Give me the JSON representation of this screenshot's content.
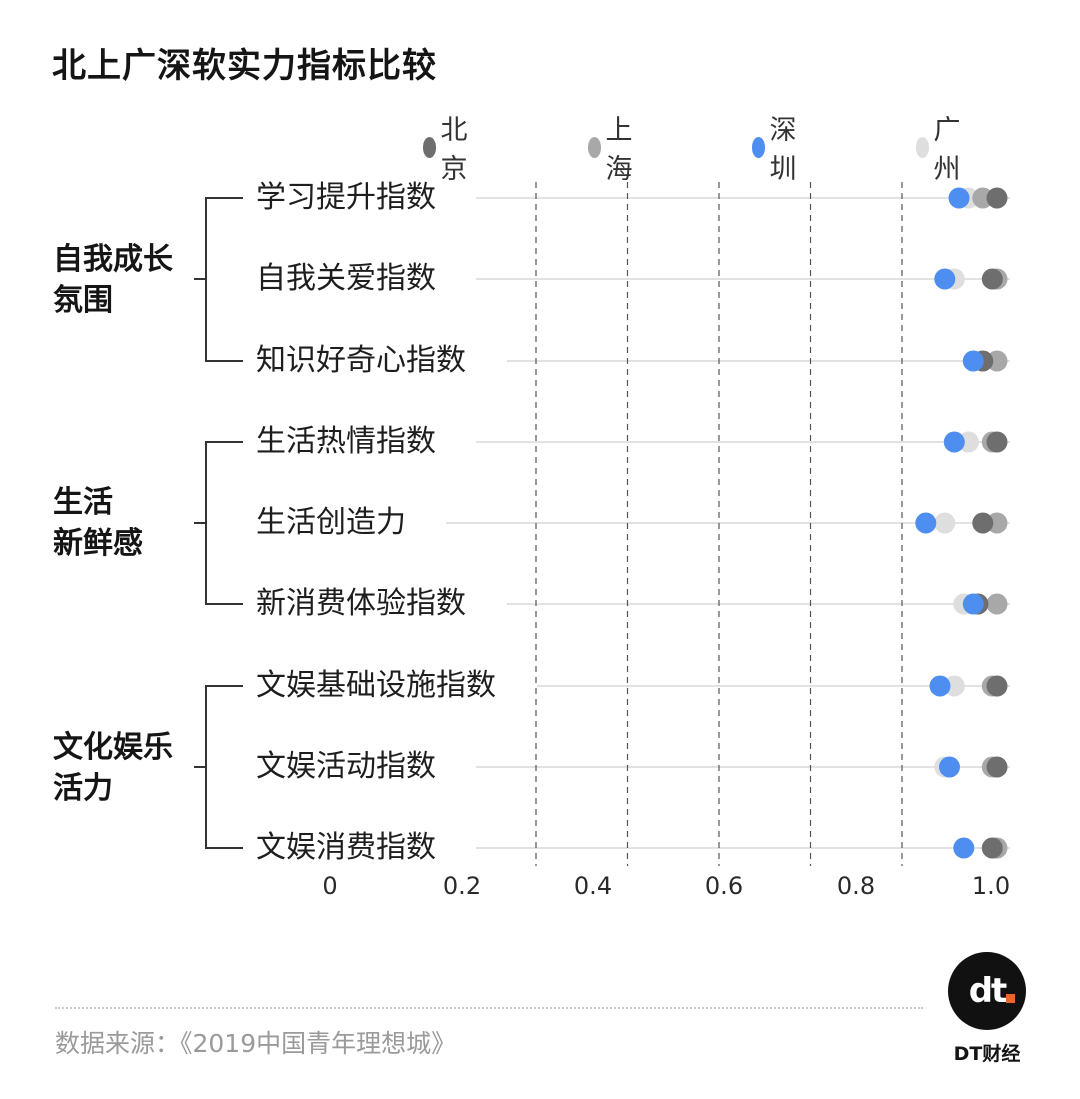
{
  "title": "北上广深软实力指标比较",
  "legend": [
    {
      "name": "北京",
      "color": "#6e6e6e"
    },
    {
      "name": "上海",
      "color": "#a8a8a8"
    },
    {
      "name": "深圳",
      "color": "#4d8ef0"
    },
    {
      "name": "广州",
      "color": "#dedede"
    }
  ],
  "groups": [
    {
      "label_line1": "自我成长",
      "label_line2": "氛围"
    },
    {
      "label_line1": "生活",
      "label_line2": "新鲜感"
    },
    {
      "label_line1": "文化娱乐",
      "label_line2": "活力"
    }
  ],
  "chart_data": {
    "type": "scatter",
    "title": "北上广深软实力指标比较",
    "categories": [
      "学习提升指数",
      "自我关爱指数",
      "知识好奇心指数",
      "生活热情指数",
      "生活创造力",
      "新消费体验指数",
      "文娱基础设施指数",
      "文娱活动指数",
      "文娱消费指数"
    ],
    "xlim": [
      0,
      1.0
    ],
    "x_ticks": [
      "0",
      "0.2",
      "0.4",
      "0.6",
      "0.8",
      "1.0"
    ],
    "grid": "vertical dashed",
    "legend_position": "top-right",
    "series": [
      {
        "name": "北京",
        "color": "#6e6e6e",
        "values": [
          1.0,
          0.99,
          0.97,
          1.0,
          0.97,
          0.96,
          1.0,
          1.0,
          0.99
        ]
      },
      {
        "name": "上海",
        "color": "#a8a8a8",
        "values": [
          0.97,
          1.0,
          1.0,
          0.99,
          1.0,
          1.0,
          0.99,
          0.99,
          1.0
        ]
      },
      {
        "name": "深圳",
        "color": "#4d8ef0",
        "values": [
          0.92,
          0.89,
          0.95,
          0.91,
          0.85,
          0.95,
          0.88,
          0.9,
          0.93
        ]
      },
      {
        "name": "广州",
        "color": "#dedede",
        "values": [
          0.94,
          0.91,
          0.97,
          0.94,
          0.89,
          0.93,
          0.91,
          0.89,
          0.99
        ]
      }
    ]
  },
  "source": "数据来源：《2019中国青年理想城》",
  "logo": {
    "mark": "dt",
    "caption": "DT财经"
  }
}
